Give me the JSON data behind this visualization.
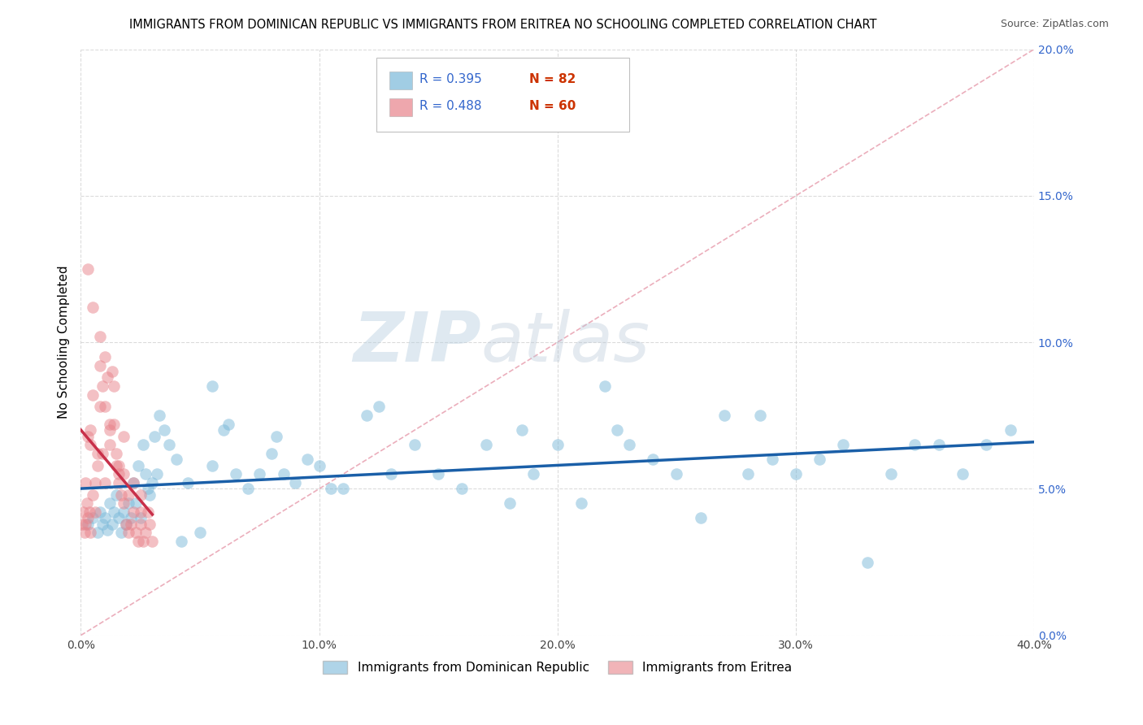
{
  "title": "IMMIGRANTS FROM DOMINICAN REPUBLIC VS IMMIGRANTS FROM ERITREA NO SCHOOLING COMPLETED CORRELATION CHART",
  "source": "Source: ZipAtlas.com",
  "ylabel": "No Schooling Completed",
  "xlim": [
    0.0,
    40.0
  ],
  "ylim": [
    0.0,
    20.0
  ],
  "xtick_vals": [
    0,
    10,
    20,
    30,
    40
  ],
  "xtick_labels": [
    "0.0%",
    "10.0%",
    "20.0%",
    "30.0%",
    "40.0%"
  ],
  "ytick_vals": [
    0,
    5,
    10,
    15,
    20
  ],
  "ytick_labels": [
    "0.0%",
    "5.0%",
    "10.0%",
    "15.0%",
    "20.0%"
  ],
  "legend_blue_R": "0.395",
  "legend_blue_N": "82",
  "legend_pink_R": "0.488",
  "legend_pink_N": "60",
  "blue_color": "#7ab8d9",
  "pink_color": "#e8828a",
  "blue_line_color": "#1a5fa8",
  "pink_line_color": "#c8304a",
  "diagonal_color": "#e8a0b0",
  "watermark_color": "#c0d8ec",
  "grid_color": "#cccccc",
  "background_color": "#ffffff",
  "blue_scatter_x": [
    0.3,
    0.5,
    0.7,
    0.8,
    0.9,
    1.0,
    1.1,
    1.2,
    1.3,
    1.4,
    1.5,
    1.6,
    1.7,
    1.8,
    1.9,
    2.0,
    2.1,
    2.2,
    2.3,
    2.4,
    2.5,
    2.6,
    2.7,
    2.8,
    2.9,
    3.0,
    3.1,
    3.2,
    3.3,
    3.5,
    3.7,
    4.0,
    4.2,
    4.5,
    5.0,
    5.5,
    6.0,
    6.5,
    7.0,
    7.5,
    8.0,
    8.5,
    9.0,
    9.5,
    10.0,
    11.0,
    12.0,
    13.0,
    14.0,
    15.0,
    16.0,
    17.0,
    18.0,
    19.0,
    20.0,
    21.0,
    22.0,
    23.0,
    24.0,
    25.0,
    26.0,
    27.0,
    28.0,
    29.0,
    30.0,
    31.0,
    32.0,
    33.0,
    34.0,
    35.0,
    36.0,
    37.0,
    38.0,
    39.0,
    5.5,
    6.2,
    8.2,
    10.5,
    12.5,
    18.5,
    22.5,
    28.5
  ],
  "blue_scatter_y": [
    3.8,
    4.0,
    3.5,
    4.2,
    3.8,
    4.0,
    3.6,
    4.5,
    3.8,
    4.2,
    4.8,
    4.0,
    3.5,
    4.2,
    3.8,
    4.5,
    4.0,
    5.2,
    4.5,
    5.8,
    4.0,
    6.5,
    5.5,
    5.0,
    4.8,
    5.2,
    6.8,
    5.5,
    7.5,
    7.0,
    6.5,
    6.0,
    3.2,
    5.2,
    3.5,
    5.8,
    7.0,
    5.5,
    5.0,
    5.5,
    6.2,
    5.5,
    5.2,
    6.0,
    5.8,
    5.0,
    7.5,
    5.5,
    6.5,
    5.5,
    5.0,
    6.5,
    4.5,
    5.5,
    6.5,
    4.5,
    8.5,
    6.5,
    6.0,
    5.5,
    4.0,
    7.5,
    5.5,
    6.0,
    5.5,
    6.0,
    6.5,
    2.5,
    5.5,
    6.5,
    6.5,
    5.5,
    6.5,
    7.0,
    8.5,
    7.2,
    6.8,
    5.0,
    7.8,
    7.0,
    7.0,
    7.5
  ],
  "pink_scatter_x": [
    0.05,
    0.1,
    0.15,
    0.2,
    0.25,
    0.3,
    0.35,
    0.4,
    0.5,
    0.6,
    0.7,
    0.8,
    0.9,
    1.0,
    1.1,
    1.2,
    1.3,
    1.4,
    1.5,
    1.6,
    1.7,
    1.8,
    1.9,
    2.0,
    2.1,
    2.2,
    2.3,
    2.4,
    2.5,
    2.6,
    2.7,
    2.8,
    2.9,
    3.0,
    0.3,
    0.5,
    0.8,
    1.0,
    1.5,
    2.0,
    0.2,
    0.4,
    0.6,
    0.9,
    1.2,
    1.6,
    1.8,
    2.2,
    2.5,
    0.3,
    0.5,
    0.7,
    1.0,
    1.4,
    1.8,
    2.5,
    0.4,
    0.8,
    1.2,
    1.6
  ],
  "pink_scatter_y": [
    3.8,
    4.2,
    3.5,
    3.8,
    4.5,
    4.0,
    4.2,
    3.5,
    4.8,
    4.2,
    6.2,
    7.8,
    8.5,
    9.5,
    8.8,
    6.5,
    9.0,
    7.2,
    5.8,
    5.2,
    4.8,
    4.5,
    3.8,
    3.5,
    3.8,
    4.2,
    3.5,
    3.2,
    3.8,
    3.2,
    3.5,
    4.2,
    3.8,
    3.2,
    12.5,
    11.2,
    10.2,
    5.2,
    6.2,
    4.8,
    5.2,
    7.0,
    5.2,
    6.2,
    7.2,
    5.5,
    6.8,
    5.2,
    4.8,
    6.8,
    8.2,
    5.8,
    7.8,
    8.5,
    5.5,
    4.2,
    6.5,
    9.2,
    7.0,
    5.8
  ]
}
